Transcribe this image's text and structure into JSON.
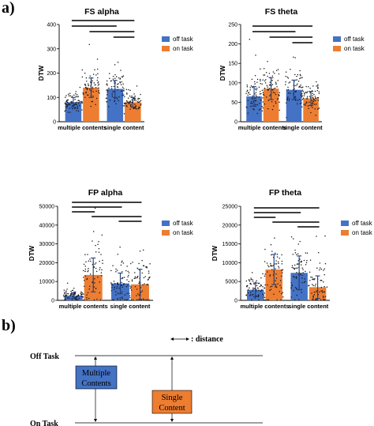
{
  "panel_labels": {
    "a": "a)",
    "b": "b)"
  },
  "colors": {
    "off_task": "#4472c4",
    "on_task": "#ed7d31",
    "points": "#1a1a1a",
    "error_bar": "#1f3d7a"
  },
  "chart_data": [
    {
      "type": "bar",
      "title": "FS alpha",
      "ylabel": "DTW",
      "ylim": [
        0,
        400
      ],
      "yticks": [
        "0",
        "100",
        "200",
        "300",
        "400"
      ],
      "categories": [
        "multiple contents",
        "single content"
      ],
      "legend": [
        "off task",
        "on task"
      ],
      "legend_position": "right",
      "series": [
        {
          "name": "off task",
          "values": [
            80,
            135
          ],
          "sd": [
            20,
            35
          ]
        },
        {
          "name": "on task",
          "values": [
            140,
            80
          ],
          "sd": [
            40,
            20
          ]
        }
      ],
      "significance_brackets": 4
    },
    {
      "type": "bar",
      "title": "FS theta",
      "ylabel": "DTW",
      "ylim": [
        0,
        250
      ],
      "yticks": [
        "0",
        "50",
        "100",
        "150",
        "200",
        "250"
      ],
      "categories": [
        "multiple contents",
        "single content"
      ],
      "legend": [
        "off task",
        "on task"
      ],
      "legend_position": "right",
      "series": [
        {
          "name": "off task",
          "values": [
            65,
            82
          ],
          "sd": [
            25,
            25
          ]
        },
        {
          "name": "on task",
          "values": [
            85,
            60
          ],
          "sd": [
            28,
            18
          ]
        }
      ],
      "significance_brackets": 4
    },
    {
      "type": "bar",
      "title": "FP alpha",
      "ylabel": "DTW",
      "ylim": [
        0,
        50000
      ],
      "yticks": [
        "0",
        "10000",
        "20000",
        "30000",
        "40000",
        "50000"
      ],
      "categories": [
        "multiple contents",
        "single content"
      ],
      "legend": [
        "off task",
        "on task"
      ],
      "legend_position": "right",
      "series": [
        {
          "name": "off task",
          "values": [
            2500,
            9000
          ],
          "sd": [
            1500,
            5500
          ]
        },
        {
          "name": "on task",
          "values": [
            13500,
            8500
          ],
          "sd": [
            9000,
            8000
          ]
        }
      ],
      "significance_brackets": 5
    },
    {
      "type": "bar",
      "title": "FP theta",
      "ylabel": "DTW",
      "ylim": [
        0,
        25000
      ],
      "yticks": [
        "0",
        "5000",
        "10000",
        "15000",
        "20000",
        "25000"
      ],
      "categories": [
        "multiple contents",
        "single content"
      ],
      "legend": [
        "off task",
        "on task"
      ],
      "legend_position": "right",
      "series": [
        {
          "name": "off task",
          "values": [
            2800,
            7300
          ],
          "sd": [
            1800,
            4500
          ]
        },
        {
          "name": "on task",
          "values": [
            8200,
            3500
          ],
          "sd": [
            4000,
            3000
          ]
        }
      ],
      "significance_brackets": 5
    }
  ],
  "diagram": {
    "legend_text": ": distance",
    "off_task_label": "Off Task",
    "on_task_label": "On Task",
    "box_multiple": "Multiple Contents",
    "box_single": "Single Content",
    "box_multiple_color": "#4472c4",
    "box_single_color": "#ed7d31"
  }
}
